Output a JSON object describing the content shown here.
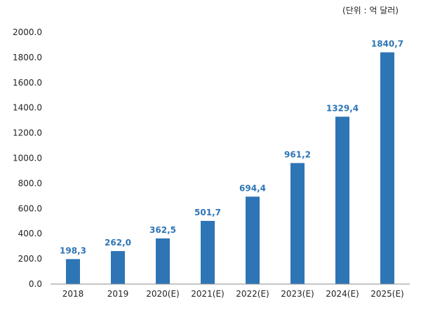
{
  "unit_note": "(단위 : 억 달러)",
  "colors": {
    "bar": "#2e75b6",
    "data_label": "#2e75b6",
    "axis": "#8c8c8c"
  },
  "chart_data": {
    "type": "bar",
    "title": "",
    "xlabel": "",
    "ylabel": "",
    "categories": [
      "2018",
      "2019",
      "2020(E)",
      "2021(E)",
      "2022(E)",
      "2023(E)",
      "2024(E)",
      "2025(E)"
    ],
    "values": [
      198.3,
      262.0,
      362.5,
      501.7,
      694.4,
      961.2,
      1329.4,
      1840.7
    ],
    "data_labels": [
      "198,3",
      "262,0",
      "362,5",
      "501,7",
      "694,4",
      "961,2",
      "1329,4",
      "1840,7"
    ],
    "ylim": [
      0,
      2000
    ],
    "yticks": [
      0,
      200,
      400,
      600,
      800,
      1000,
      1200,
      1400,
      1600,
      1800,
      2000
    ],
    "ytick_labels": [
      "0.0",
      "200.0",
      "400.0",
      "600.0",
      "800.0",
      "1000.0",
      "1200.0",
      "1400.0",
      "1600.0",
      "1800.0",
      "2000.0"
    ],
    "grid": false,
    "legend": "none"
  }
}
